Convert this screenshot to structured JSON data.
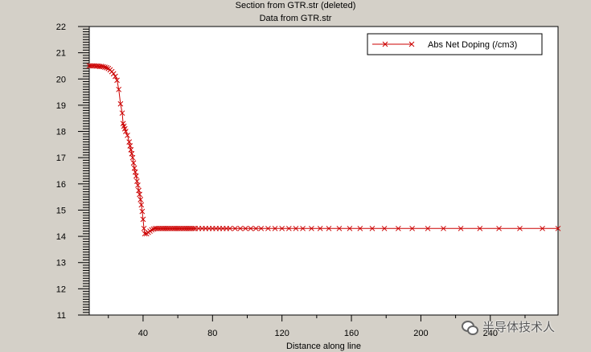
{
  "header": {
    "title": "Section from GTR.str (deleted)",
    "subtitle": "Data from GTR.str"
  },
  "watermark": {
    "text": "半导体技术人",
    "icon": "wechat-icon"
  },
  "colors": {
    "series": "#cc0000",
    "background": "#d4d0c8",
    "plot": "#ffffff"
  },
  "chart_data": {
    "type": "line",
    "title": "Section from GTR.str (deleted)",
    "subtitle": "Data from GTR.str",
    "xlabel": "Distance along line",
    "ylabel": "",
    "xlim": [
      9,
      279
    ],
    "ylim": [
      11,
      22
    ],
    "x_ticks": [
      40,
      80,
      120,
      160,
      200,
      240
    ],
    "y_ticks": [
      11,
      12,
      13,
      14,
      15,
      16,
      17,
      18,
      19,
      20,
      21,
      22
    ],
    "grid": false,
    "legend": {
      "position": "top-right"
    },
    "series": [
      {
        "name": "Abs Net Doping (/cm3)",
        "color": "#cc0000",
        "marker": "x",
        "x": [
          9,
          10,
          11,
          12,
          13,
          14,
          15,
          16,
          17,
          18,
          19,
          20,
          21,
          22,
          23,
          24,
          25,
          26,
          27,
          28,
          28.5,
          29,
          29.5,
          30,
          31,
          32,
          32.5,
          33,
          33.5,
          34,
          34.5,
          35,
          35.5,
          36,
          36.5,
          37,
          37.5,
          38,
          38.5,
          39,
          39.5,
          40,
          40.5,
          41,
          42,
          43,
          44,
          45,
          46,
          47,
          48,
          49,
          50,
          51,
          52,
          53,
          54,
          55,
          56,
          57,
          58,
          59,
          60,
          61,
          62,
          63,
          64,
          65,
          66,
          67,
          68,
          69,
          70,
          72,
          74,
          76,
          78,
          80,
          82,
          84,
          86,
          88,
          90,
          93,
          96,
          99,
          102,
          105,
          108,
          112,
          116,
          120,
          124,
          128,
          132,
          137,
          142,
          147,
          153,
          159,
          165,
          172,
          179,
          187,
          195,
          204,
          213,
          223,
          234,
          245,
          257,
          270,
          279
        ],
        "y": [
          20.5,
          20.5,
          20.5,
          20.5,
          20.49,
          20.49,
          20.48,
          20.48,
          20.47,
          20.45,
          20.43,
          20.4,
          20.35,
          20.28,
          20.2,
          20.1,
          19.95,
          19.6,
          19.05,
          18.7,
          18.3,
          18.2,
          18.1,
          18.0,
          17.85,
          17.6,
          17.45,
          17.3,
          17.15,
          17.0,
          16.8,
          16.6,
          16.45,
          16.3,
          16.1,
          15.95,
          15.75,
          15.6,
          15.4,
          15.2,
          14.95,
          14.65,
          14.3,
          14.1,
          14.1,
          14.15,
          14.2,
          14.25,
          14.28,
          14.3,
          14.3,
          14.3,
          14.3,
          14.3,
          14.3,
          14.3,
          14.3,
          14.3,
          14.3,
          14.3,
          14.3,
          14.3,
          14.3,
          14.3,
          14.3,
          14.3,
          14.3,
          14.3,
          14.3,
          14.3,
          14.3,
          14.3,
          14.3,
          14.3,
          14.3,
          14.3,
          14.3,
          14.3,
          14.3,
          14.3,
          14.3,
          14.3,
          14.3,
          14.3,
          14.3,
          14.3,
          14.3,
          14.3,
          14.3,
          14.3,
          14.3,
          14.3,
          14.3,
          14.3,
          14.3,
          14.3,
          14.3,
          14.3,
          14.3,
          14.3,
          14.3,
          14.3,
          14.3,
          14.3,
          14.3,
          14.3,
          14.3,
          14.3,
          14.3,
          14.3,
          14.3,
          14.3,
          14.3
        ]
      }
    ]
  }
}
